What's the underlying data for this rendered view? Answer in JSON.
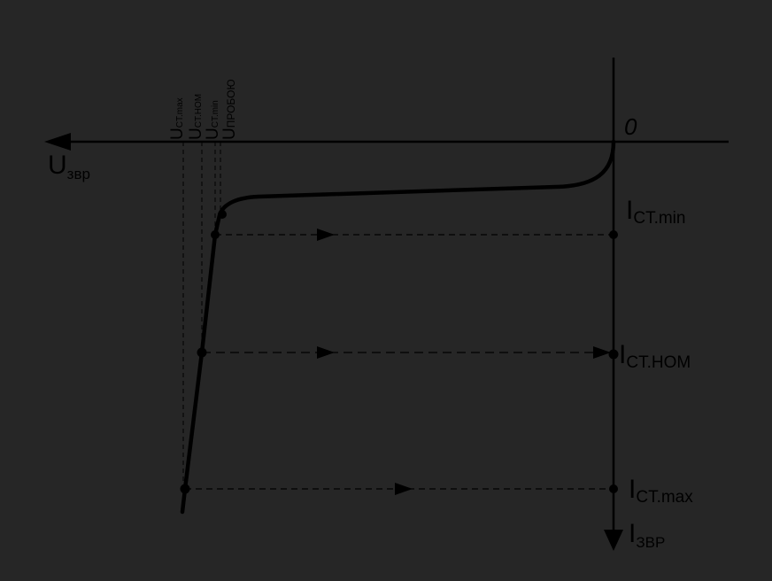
{
  "origin_label": "0",
  "x_axis": {
    "main": "U",
    "sub": "звр"
  },
  "y_axis": {
    "main": "I",
    "sub": "ЗВР"
  },
  "current_labels": [
    {
      "main": "I",
      "sub": "CT.min"
    },
    {
      "main": "I",
      "sub": "CT.HOM"
    },
    {
      "main": "I",
      "sub": "CT.max"
    }
  ],
  "voltage_labels": [
    {
      "main": "U",
      "sub": "CT.max"
    },
    {
      "main": "U",
      "sub": "CT.HOM"
    },
    {
      "main": "U",
      "sub": "CT.min"
    },
    {
      "main": "U",
      "sub": "ПРОБОЮ"
    }
  ],
  "colors": {
    "background": "#262626",
    "ink": "#000000"
  }
}
